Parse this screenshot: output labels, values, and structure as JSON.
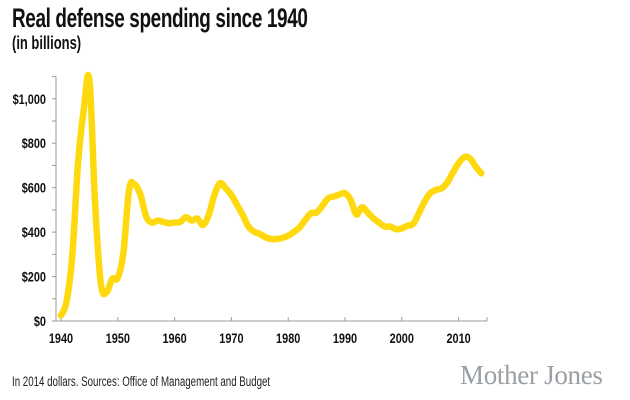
{
  "header": {
    "title": "Real defense spending since 1940",
    "subtitle": "(in billions)"
  },
  "footer": {
    "note": "In 2014 dollars. Sources: Office of Management and Budget",
    "logo": "Mother Jones"
  },
  "colors": {
    "line": "#FFD90F",
    "axis": "#9b9b9b",
    "text": "#111111",
    "logo": "#9a9fa4"
  },
  "chart_data": {
    "type": "line",
    "title": "Real defense spending since 1940",
    "subtitle": "(in billions)",
    "xlabel": "",
    "ylabel": "",
    "xlim": [
      1940,
      2015
    ],
    "ylim": [
      0,
      1100
    ],
    "grid": false,
    "legend": "none",
    "x_ticks": [
      1940,
      1950,
      1960,
      1970,
      1980,
      1990,
      2000,
      2010
    ],
    "x_tick_labels": [
      "1940",
      "1950",
      "1960",
      "1970",
      "1980",
      "1990",
      "2000",
      "2010"
    ],
    "y_ticks": [
      0,
      200,
      400,
      600,
      800,
      1000
    ],
    "y_tick_labels": [
      "$0",
      "$200",
      "$400",
      "$600",
      "$800",
      "$1,000"
    ],
    "y_minor_ticks": [
      100,
      300,
      500,
      700,
      900,
      1100
    ],
    "series": [
      {
        "name": "Real defense spending (2014 dollars, billions)",
        "x": [
          1940,
          1941,
          1942,
          1943,
          1944,
          1945,
          1946,
          1947,
          1948,
          1949,
          1950,
          1951,
          1952,
          1953,
          1954,
          1955,
          1956,
          1957,
          1958,
          1959,
          1960,
          1961,
          1962,
          1963,
          1964,
          1965,
          1966,
          1967,
          1968,
          1969,
          1970,
          1971,
          1972,
          1973,
          1974,
          1975,
          1976,
          1977,
          1978,
          1979,
          1980,
          1981,
          1982,
          1983,
          1984,
          1985,
          1986,
          1987,
          1988,
          1989,
          1990,
          1991,
          1992,
          1993,
          1994,
          1995,
          1996,
          1997,
          1998,
          1999,
          2000,
          2001,
          2002,
          2003,
          2004,
          2005,
          2006,
          2007,
          2008,
          2009,
          2010,
          2011,
          2012,
          2013,
          2014
        ],
        "values": [
          25,
          90,
          300,
          710,
          950,
          1085,
          530,
          171,
          128,
          189,
          195,
          311,
          593,
          613,
          567,
          470,
          443,
          452,
          446,
          440,
          443,
          446,
          467,
          452,
          461,
          432,
          477,
          567,
          620,
          597,
          567,
          522,
          477,
          425,
          402,
          392,
          377,
          369,
          369,
          374,
          384,
          401,
          421,
          455,
          485,
          488,
          518,
          552,
          560,
          569,
          575,
          545,
          480,
          512,
          488,
          462,
          443,
          425,
          425,
          413,
          417,
          429,
          437,
          485,
          537,
          575,
          590,
          597,
          623,
          668,
          710,
          737,
          732,
          695,
          665
        ]
      }
    ],
    "annotations": [
      "In 2014 dollars. Sources: Office of Management and Budget"
    ]
  }
}
